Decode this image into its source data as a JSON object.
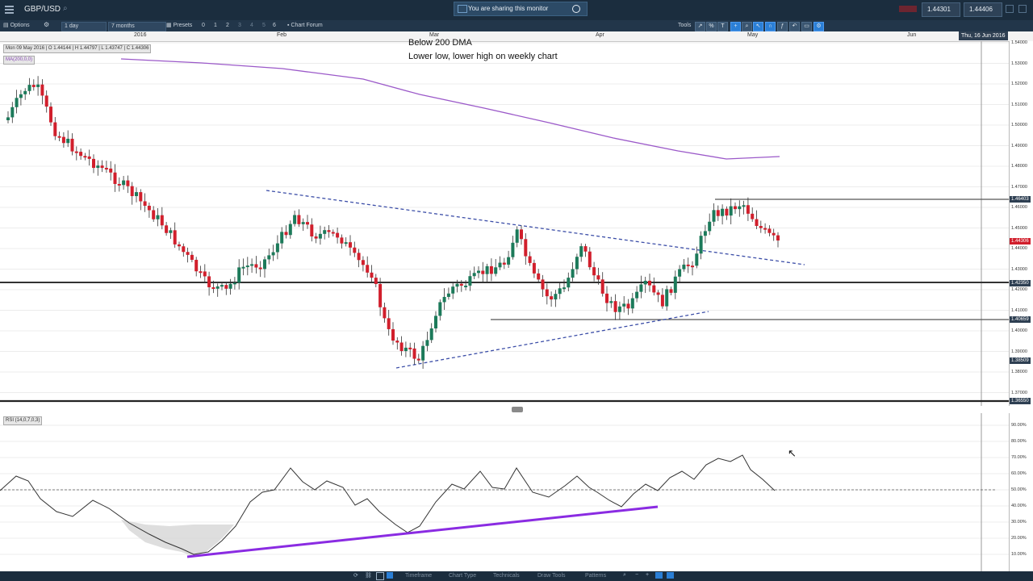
{
  "app": {
    "symbol": "GBP/USD",
    "sharing_notice": "You are sharing this monitor",
    "bid": "1.44301",
    "ask": "1.44406"
  },
  "toolbar": {
    "options_label": "Options",
    "interval": "1 day",
    "range": "7 months",
    "presets_label": "Presets",
    "preset_values": [
      "0",
      "1",
      "2",
      "3",
      "4",
      "5",
      "6"
    ],
    "chart_forum_label": "Chart Forum",
    "tools_label": "Tools"
  },
  "date_axis": {
    "labels": [
      "2016",
      "Feb",
      "Mar",
      "Apr",
      "May",
      "Jun"
    ],
    "cursor_date": "Thu, 16 Jun 2016"
  },
  "price_pane": {
    "ohlc_legend": "Mon 09 May 2016 | O 1.44144 | H 1.44797 | L 1.43747 | C 1.44306",
    "ma_legend": "MA(200,0,0)",
    "annotation_line1": "Below 200 DMA",
    "annotation_line2": "Lower low, lower high on weekly chart",
    "price_ticks": [
      "1.54000",
      "1.53000",
      "1.52000",
      "1.51000",
      "1.50000",
      "1.49000",
      "1.48000",
      "1.47000",
      "1.46000",
      "1.45000",
      "1.44000",
      "1.43000",
      "1.42000",
      "1.41000",
      "1.40000",
      "1.39000",
      "1.38000",
      "1.37000"
    ],
    "level_badges": {
      "resistance": "1.46403",
      "current": "1.44306",
      "mid": "1.42350",
      "support": "1.40659",
      "low": "1.38509",
      "bottom": "1.36550"
    },
    "colors": {
      "bull": "#1c7a5a",
      "bear": "#d11f2c",
      "ma": "#9b59c9",
      "trendline": "#3d4fa8",
      "current_badge": "#d11f2c"
    }
  },
  "rsi_pane": {
    "legend": "RSI (14,0,7,0,3)",
    "ticks": [
      "90.00%",
      "80.00%",
      "70.00%",
      "60.00%",
      "50.00%",
      "40.00%",
      "30.00%",
      "20.00%",
      "10.00%"
    ],
    "divergence_color": "#8a2be2"
  },
  "bottombar": {
    "items": [
      "Timeframe",
      "Chart Type",
      "Technicals",
      "Draw Tools",
      "Patterns"
    ]
  }
}
